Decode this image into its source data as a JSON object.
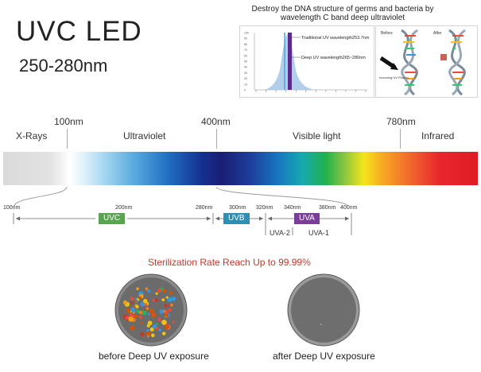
{
  "header": {
    "title": "UVC LED",
    "range": "250-280nm"
  },
  "dna_panel": {
    "caption": "Destroy the DNA structure of germs and bacteria by wavelength C band deep ultraviolet",
    "legend_traditional": "Traditional UV wavelength253.7nm",
    "legend_deep": "Deep UV wavelength265~280nm",
    "before_label": "Before",
    "after_label": "After",
    "photon_label": "Incoming UV Photon"
  },
  "chart_data": {
    "type": "area",
    "title": "",
    "xlabel": "",
    "ylabel": "",
    "y_ticks": [
      "100",
      "90",
      "80",
      "70",
      "60",
      "50",
      "40",
      "30",
      "20",
      "10",
      "0"
    ],
    "x_tick_count": 12,
    "series": [
      {
        "name": "Traditional UV wavelength253.7nm",
        "marker": 253.7
      },
      {
        "name": "Deep UV wavelength265~280nm",
        "band": [
          265,
          280
        ]
      }
    ],
    "colors": {
      "curve": "#a8c9e8",
      "traditional": "#4aa3e0",
      "deep": "#5b2a8a"
    }
  },
  "spectrum": {
    "markers": [
      {
        "label": "100nm"
      },
      {
        "label": "400nm"
      },
      {
        "label": "780nm"
      }
    ],
    "regions": [
      {
        "label": "X-Rays"
      },
      {
        "label": "Ultraviolet"
      },
      {
        "label": "Visible light"
      },
      {
        "label": "Infrared"
      }
    ]
  },
  "uv_scale": {
    "ticks": [
      "100nm",
      "200nm",
      "280nm",
      "300nm",
      "320nm",
      "340nm",
      "380nm",
      "400nm"
    ],
    "uvc": "UVC",
    "uvb": "UVB",
    "uva": "UVA",
    "uva2": "UVA-2",
    "uva1": "UVA-1",
    "colors": {
      "uvc": "#5aa351",
      "uvb": "#2b8fb6",
      "uva": "#7a3e9a"
    }
  },
  "sterilization": {
    "heading": "Sterilization Rate Reach Up to 99.99%",
    "heading_color": "#c0392b",
    "before_caption": "before Deep UV exposure",
    "after_caption": "after Deep UV exposure"
  }
}
